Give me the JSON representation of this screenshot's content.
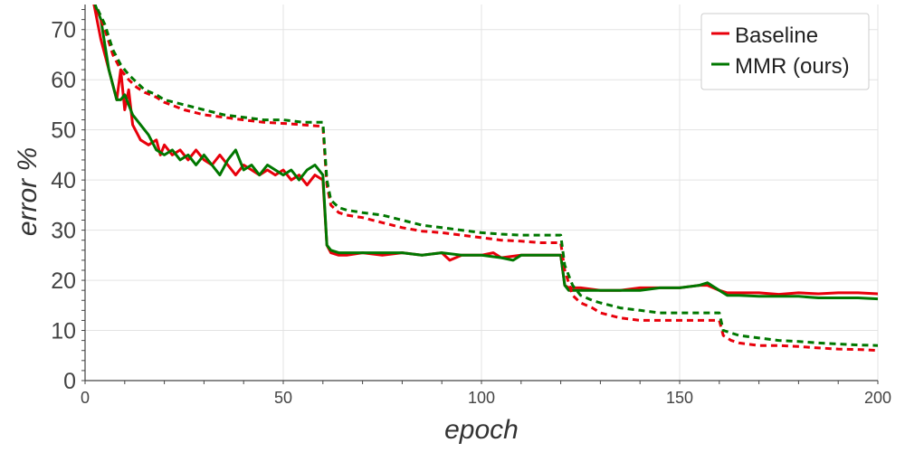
{
  "chart_data": {
    "type": "line",
    "title": "",
    "xlabel": "epoch",
    "ylabel": "error %",
    "xlim": [
      0,
      200
    ],
    "ylim": [
      0,
      75
    ],
    "xticks": [
      "0",
      "50",
      "100",
      "150",
      "200"
    ],
    "yticks": [
      "0",
      "10",
      "20",
      "30",
      "40",
      "50",
      "60",
      "70"
    ],
    "grid": true,
    "legend_position": "top-right",
    "legend": [
      {
        "label": "Baseline",
        "color": "#e8000b"
      },
      {
        "label": "MMR (ours)",
        "color": "#007700"
      }
    ],
    "series": [
      {
        "name": "Baseline",
        "color": "#e8000b",
        "dashed": false,
        "points": [
          [
            2,
            76
          ],
          [
            4,
            68
          ],
          [
            6,
            62
          ],
          [
            8,
            56
          ],
          [
            9,
            62
          ],
          [
            10,
            54
          ],
          [
            11,
            58
          ],
          [
            12,
            51
          ],
          [
            14,
            48
          ],
          [
            16,
            47
          ],
          [
            18,
            48
          ],
          [
            19,
            45
          ],
          [
            20,
            47
          ],
          [
            22,
            45
          ],
          [
            24,
            46
          ],
          [
            26,
            44
          ],
          [
            28,
            46
          ],
          [
            30,
            44
          ],
          [
            32,
            43
          ],
          [
            34,
            45
          ],
          [
            36,
            43
          ],
          [
            38,
            41
          ],
          [
            40,
            43
          ],
          [
            42,
            42
          ],
          [
            44,
            41
          ],
          [
            46,
            42
          ],
          [
            48,
            41
          ],
          [
            50,
            42
          ],
          [
            52,
            40
          ],
          [
            54,
            41
          ],
          [
            56,
            39
          ],
          [
            58,
            41
          ],
          [
            60,
            40
          ],
          [
            61,
            27
          ],
          [
            62,
            25.5
          ],
          [
            64,
            25
          ],
          [
            66,
            25
          ],
          [
            70,
            25.5
          ],
          [
            75,
            25
          ],
          [
            80,
            25.5
          ],
          [
            85,
            25
          ],
          [
            90,
            25.5
          ],
          [
            92,
            24
          ],
          [
            95,
            25
          ],
          [
            100,
            25
          ],
          [
            103,
            25.5
          ],
          [
            105,
            24.5
          ],
          [
            110,
            25
          ],
          [
            115,
            25
          ],
          [
            118,
            25
          ],
          [
            120,
            25
          ],
          [
            121,
            19
          ],
          [
            122,
            18.5
          ],
          [
            125,
            18.5
          ],
          [
            130,
            18
          ],
          [
            135,
            18
          ],
          [
            140,
            18.5
          ],
          [
            145,
            18.5
          ],
          [
            150,
            18.5
          ],
          [
            155,
            19
          ],
          [
            157,
            19
          ],
          [
            160,
            18
          ],
          [
            162,
            17.5
          ],
          [
            165,
            17.5
          ],
          [
            170,
            17.5
          ],
          [
            175,
            17.2
          ],
          [
            180,
            17.5
          ],
          [
            185,
            17.3
          ],
          [
            190,
            17.5
          ],
          [
            195,
            17.5
          ],
          [
            200,
            17.3
          ]
        ]
      },
      {
        "name": "MMR (ours)",
        "color": "#007700",
        "dashed": false,
        "points": [
          [
            2,
            76
          ],
          [
            4,
            72
          ],
          [
            6,
            62
          ],
          [
            8,
            56
          ],
          [
            9,
            56
          ],
          [
            10,
            57
          ],
          [
            11,
            55
          ],
          [
            12,
            53
          ],
          [
            14,
            51
          ],
          [
            16,
            49
          ],
          [
            18,
            46
          ],
          [
            20,
            45
          ],
          [
            22,
            46
          ],
          [
            24,
            44
          ],
          [
            26,
            45
          ],
          [
            28,
            43
          ],
          [
            30,
            45
          ],
          [
            32,
            43
          ],
          [
            34,
            41
          ],
          [
            36,
            44
          ],
          [
            38,
            46
          ],
          [
            40,
            42
          ],
          [
            42,
            43
          ],
          [
            44,
            41
          ],
          [
            46,
            43
          ],
          [
            48,
            42
          ],
          [
            50,
            41
          ],
          [
            52,
            42
          ],
          [
            54,
            40
          ],
          [
            56,
            42
          ],
          [
            58,
            43
          ],
          [
            60,
            41
          ],
          [
            61,
            27
          ],
          [
            62,
            26
          ],
          [
            64,
            25.5
          ],
          [
            66,
            25.5
          ],
          [
            70,
            25.5
          ],
          [
            75,
            25.5
          ],
          [
            80,
            25.5
          ],
          [
            85,
            25
          ],
          [
            90,
            25.5
          ],
          [
            95,
            25
          ],
          [
            100,
            25
          ],
          [
            105,
            24.5
          ],
          [
            108,
            24
          ],
          [
            110,
            25
          ],
          [
            115,
            25
          ],
          [
            118,
            25
          ],
          [
            120,
            25
          ],
          [
            121,
            19
          ],
          [
            122,
            18
          ],
          [
            125,
            18
          ],
          [
            130,
            18
          ],
          [
            135,
            18
          ],
          [
            140,
            18
          ],
          [
            145,
            18.5
          ],
          [
            150,
            18.5
          ],
          [
            155,
            19
          ],
          [
            157,
            19.5
          ],
          [
            160,
            18
          ],
          [
            162,
            17
          ],
          [
            165,
            17
          ],
          [
            170,
            16.8
          ],
          [
            175,
            16.8
          ],
          [
            180,
            16.8
          ],
          [
            185,
            16.5
          ],
          [
            190,
            16.5
          ],
          [
            195,
            16.5
          ],
          [
            200,
            16.3
          ]
        ]
      },
      {
        "name": "",
        "color": "#e8000b",
        "dashed": true,
        "points": [
          [
            2,
            76
          ],
          [
            5,
            70
          ],
          [
            7,
            65
          ],
          [
            9,
            62
          ],
          [
            11,
            60
          ],
          [
            13,
            58.5
          ],
          [
            15,
            57.5
          ],
          [
            18,
            56.5
          ],
          [
            20,
            55.5
          ],
          [
            25,
            54
          ],
          [
            30,
            53
          ],
          [
            35,
            52.5
          ],
          [
            40,
            52
          ],
          [
            45,
            51.5
          ],
          [
            50,
            51.3
          ],
          [
            55,
            51
          ],
          [
            60,
            50.7
          ],
          [
            61,
            39
          ],
          [
            62,
            35
          ],
          [
            64,
            33.5
          ],
          [
            66,
            33
          ],
          [
            70,
            32.5
          ],
          [
            75,
            31.5
          ],
          [
            80,
            30.5
          ],
          [
            85,
            29.8
          ],
          [
            90,
            29.5
          ],
          [
            95,
            29
          ],
          [
            100,
            28.5
          ],
          [
            105,
            28
          ],
          [
            110,
            27.8
          ],
          [
            115,
            27.5
          ],
          [
            120,
            27.5
          ],
          [
            121,
            22
          ],
          [
            123,
            17
          ],
          [
            125,
            15.5
          ],
          [
            128,
            14.5
          ],
          [
            130,
            13.5
          ],
          [
            135,
            12.5
          ],
          [
            140,
            12
          ],
          [
            145,
            12
          ],
          [
            150,
            12
          ],
          [
            155,
            12
          ],
          [
            160,
            12
          ],
          [
            161,
            9
          ],
          [
            163,
            8
          ],
          [
            165,
            7.5
          ],
          [
            170,
            7
          ],
          [
            175,
            7
          ],
          [
            180,
            6.8
          ],
          [
            185,
            6.5
          ],
          [
            190,
            6.3
          ],
          [
            195,
            6.2
          ],
          [
            200,
            6
          ]
        ]
      },
      {
        "name": "",
        "color": "#007700",
        "dashed": true,
        "points": [
          [
            2,
            76
          ],
          [
            5,
            71
          ],
          [
            7,
            66
          ],
          [
            9,
            63
          ],
          [
            11,
            61
          ],
          [
            13,
            59.5
          ],
          [
            15,
            58
          ],
          [
            18,
            57
          ],
          [
            20,
            56
          ],
          [
            25,
            55
          ],
          [
            30,
            54
          ],
          [
            35,
            53
          ],
          [
            40,
            52.5
          ],
          [
            45,
            52
          ],
          [
            50,
            52
          ],
          [
            55,
            51.5
          ],
          [
            60,
            51.5
          ],
          [
            61,
            40
          ],
          [
            62,
            36
          ],
          [
            64,
            34.5
          ],
          [
            66,
            34
          ],
          [
            70,
            33.5
          ],
          [
            75,
            33
          ],
          [
            80,
            32
          ],
          [
            85,
            31
          ],
          [
            90,
            30.5
          ],
          [
            95,
            30
          ],
          [
            100,
            29.5
          ],
          [
            105,
            29.2
          ],
          [
            110,
            29
          ],
          [
            115,
            29
          ],
          [
            120,
            29
          ],
          [
            121,
            23
          ],
          [
            123,
            19
          ],
          [
            125,
            17
          ],
          [
            128,
            16
          ],
          [
            130,
            15.5
          ],
          [
            135,
            14.5
          ],
          [
            140,
            14
          ],
          [
            145,
            13.5
          ],
          [
            150,
            13.5
          ],
          [
            155,
            13.5
          ],
          [
            160,
            13.5
          ],
          [
            161,
            10
          ],
          [
            163,
            9.5
          ],
          [
            165,
            9
          ],
          [
            170,
            8.5
          ],
          [
            175,
            8
          ],
          [
            180,
            7.8
          ],
          [
            185,
            7.5
          ],
          [
            190,
            7.3
          ],
          [
            195,
            7.1
          ],
          [
            200,
            7
          ]
        ]
      }
    ]
  }
}
